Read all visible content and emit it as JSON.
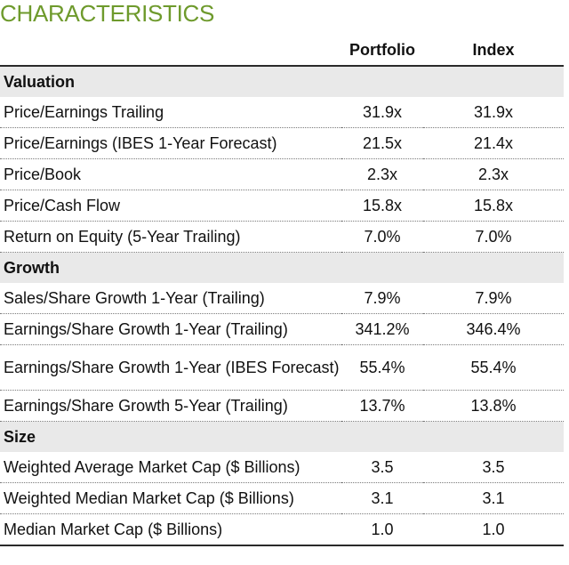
{
  "title": "CHARACTERISTICS",
  "colors": {
    "title": "#6e9a2c",
    "section_bg": "#e9e9e9"
  },
  "columns": {
    "portfolio": "Portfolio",
    "index": "Index"
  },
  "sections": [
    {
      "name": "Valuation",
      "rows": [
        {
          "label": "Price/Earnings Trailing",
          "portfolio": "31.9x",
          "index": "31.9x"
        },
        {
          "label": "Price/Earnings (IBES 1-Year Forecast)",
          "portfolio": "21.5x",
          "index": "21.4x"
        },
        {
          "label": "Price/Book",
          "portfolio": "2.3x",
          "index": "2.3x"
        },
        {
          "label": "Price/Cash Flow",
          "portfolio": "15.8x",
          "index": "15.8x"
        },
        {
          "label": "Return on Equity (5-Year Trailing)",
          "portfolio": "7.0%",
          "index": "7.0%"
        }
      ]
    },
    {
      "name": "Growth",
      "rows": [
        {
          "label": "Sales/Share Growth 1-Year (Trailing)",
          "portfolio": "7.9%",
          "index": "7.9%"
        },
        {
          "label": "Earnings/Share Growth 1-Year (Trailing)",
          "portfolio": "341.2%",
          "index": "346.4%"
        },
        {
          "label": "Earnings/Share Growth 1-Year (IBES Forecast)",
          "portfolio": "55.4%",
          "index": "55.4%"
        },
        {
          "label": "Earnings/Share Growth 5-Year (Trailing)",
          "portfolio": "13.7%",
          "index": "13.8%"
        }
      ]
    },
    {
      "name": "Size",
      "rows": [
        {
          "label": "Weighted Average Market Cap ($ Billions)",
          "portfolio": "3.5",
          "index": "3.5"
        },
        {
          "label": "Weighted Median Market Cap ($ Billions)",
          "portfolio": "3.1",
          "index": "3.1"
        },
        {
          "label": "Median Market Cap ($ Billions)",
          "portfolio": "1.0",
          "index": "1.0"
        }
      ]
    }
  ]
}
